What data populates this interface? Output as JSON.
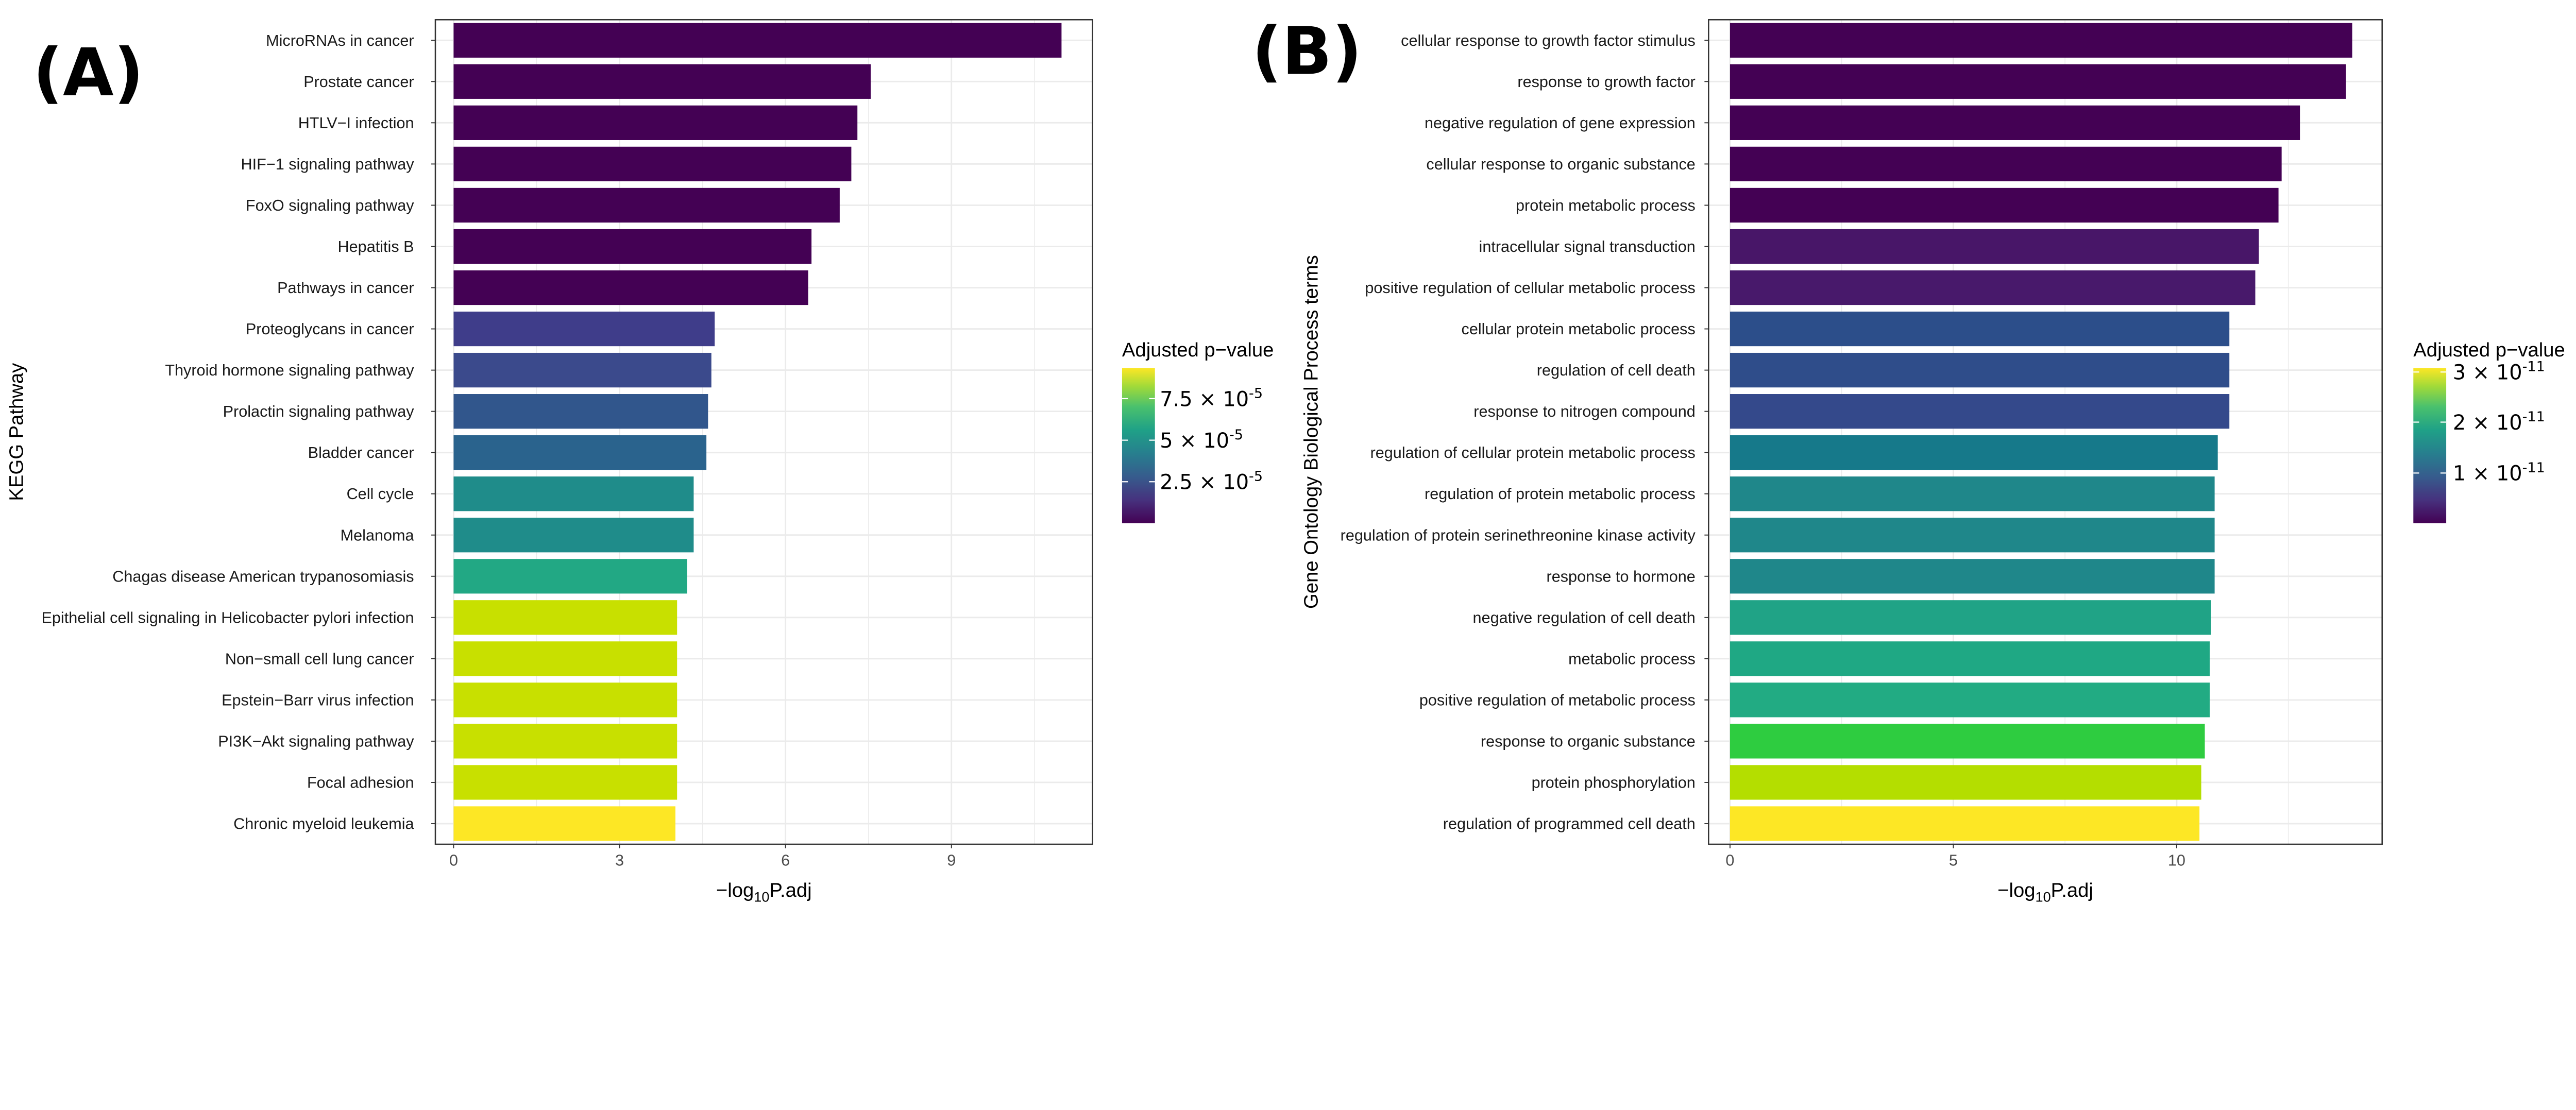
{
  "chart_data": [
    {
      "type": "bar",
      "orientation": "horizontal",
      "panel_label": "(A)",
      "xlabel": {
        "prefix": "−log",
        "sub": "10",
        "suffix": "P.adj"
      },
      "ylabel": "KEGG Pathway",
      "xlim": [
        -0.33,
        11.55
      ],
      "xticks": [
        0,
        3,
        6,
        9
      ],
      "grid": true,
      "legend": {
        "title": "Adjusted p−value",
        "placement": "right",
        "colormap": "viridis",
        "ticks": [
          {
            "value": 7.5e-05,
            "mantissa": "7.5 × 10",
            "exponent": "-5"
          },
          {
            "value": 5e-05,
            "mantissa": "5 × 10",
            "exponent": "-5"
          },
          {
            "value": 2.5e-05,
            "mantissa": "2.5 × 10",
            "exponent": "-5"
          }
        ]
      },
      "categories": [
        "MicroRNAs in cancer",
        "Prostate cancer",
        "HTLV−I infection",
        "HIF−1 signaling pathway",
        "FoxO signaling pathway",
        "Hepatitis B",
        "Pathways in cancer",
        "Proteoglycans in cancer",
        "Thyroid hormone signaling pathway",
        "Prolactin signaling pathway",
        "Bladder cancer",
        "Cell cycle",
        "Melanoma",
        "Chagas disease American trypanosomiasis",
        "Epithelial cell signaling in Helicobacter pylori infection",
        "Non−small cell lung cancer",
        "Epstein−Barr virus infection",
        "PI3K−Akt signaling pathway",
        "Focal adhesion",
        "Chronic myeloid leukemia"
      ],
      "values": [
        10.99,
        7.54,
        7.3,
        7.19,
        6.98,
        6.47,
        6.41,
        4.72,
        4.66,
        4.6,
        4.57,
        4.34,
        4.34,
        4.22,
        4.04,
        4.04,
        4.04,
        4.04,
        4.04,
        4.01
      ],
      "colors": [
        "#440154",
        "#440154",
        "#440154",
        "#440154",
        "#440154",
        "#440154",
        "#440154",
        "#3f3d8a",
        "#3b4a8c",
        "#31568c",
        "#2a638d",
        "#1f8c8a",
        "#1f8c8a",
        "#22a884",
        "#c8e000",
        "#c8e000",
        "#c8e000",
        "#c8e000",
        "#c8e000",
        "#fde725"
      ]
    },
    {
      "type": "bar",
      "orientation": "horizontal",
      "panel_label": "(B)",
      "xlabel": {
        "prefix": "−log",
        "sub": "10",
        "suffix": "P.adj"
      },
      "ylabel": "Gene Ontology Biological Process terms",
      "xlim": [
        -0.48,
        14.6
      ],
      "xticks": [
        0,
        5,
        10
      ],
      "grid": true,
      "legend": {
        "title": "Adjusted p−value",
        "placement": "right",
        "colormap": "viridis",
        "ticks": [
          {
            "value": 3e-11,
            "mantissa": "3 × 10",
            "exponent": "-11"
          },
          {
            "value": 2e-11,
            "mantissa": "2 × 10",
            "exponent": "-11"
          },
          {
            "value": 1e-11,
            "mantissa": "1 × 10",
            "exponent": "-11"
          }
        ]
      },
      "categories": [
        "cellular response to growth factor stimulus",
        "response to growth factor",
        "negative regulation of gene expression",
        "cellular response to organic substance",
        "protein metabolic process",
        "intracellular signal transduction",
        "positive regulation of cellular metabolic process",
        "cellular protein metabolic process",
        "regulation of cell death",
        "response to nitrogen compound",
        "regulation of cellular protein metabolic process",
        "regulation of protein metabolic process",
        "regulation of protein serinethreonine kinase activity",
        "response to hormone",
        "negative regulation of cell death",
        "metabolic process",
        "positive regulation of metabolic process",
        "response to organic substance",
        "protein phosphorylation",
        "regulation of programmed cell death"
      ],
      "values": [
        13.93,
        13.79,
        12.76,
        12.35,
        12.28,
        11.84,
        11.76,
        11.18,
        11.18,
        11.18,
        10.92,
        10.85,
        10.85,
        10.85,
        10.77,
        10.74,
        10.74,
        10.63,
        10.55,
        10.51
      ],
      "colors": [
        "#440154",
        "#440154",
        "#440154",
        "#440154",
        "#440154",
        "#481668",
        "#48196b",
        "#2c4e8a",
        "#2f4d8a",
        "#34498b",
        "#16798a",
        "#1f878a",
        "#1f878a",
        "#1f878a",
        "#20a386",
        "#1fa884",
        "#22ab83",
        "#2ecc40",
        "#b4de00",
        "#fde725"
      ]
    }
  ]
}
